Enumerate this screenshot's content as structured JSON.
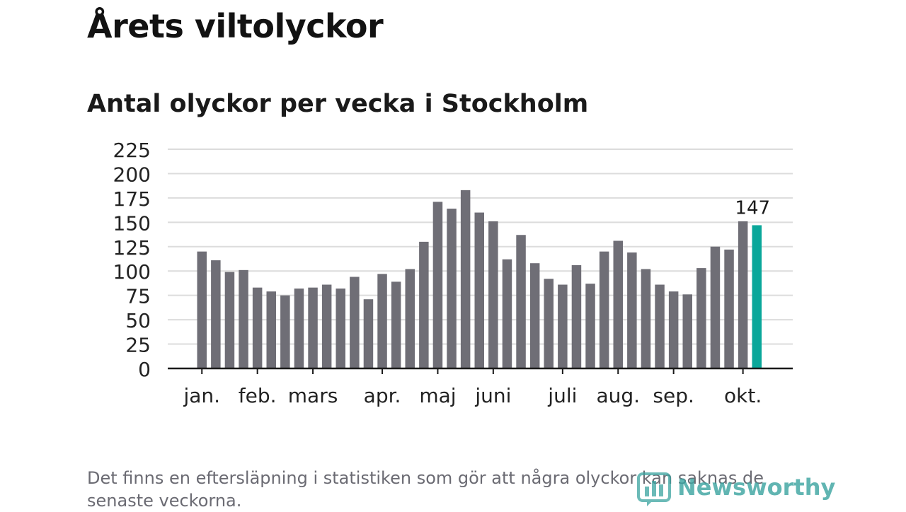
{
  "header": {
    "title": "Årets viltolyckor",
    "subtitle": "Antal olyckor per vecka i Stockholm"
  },
  "footer": {
    "note": "Det finns en eftersläpning i statistiken som gör att några olyckor kan saknas de senaste veckorna.",
    "logo_text": "Newsworthy"
  },
  "colors": {
    "bar": "#6f6e76",
    "highlight": "#0aa79a",
    "grid": "#dcdcdc",
    "axis": "#1a1a1a"
  },
  "chart_data": {
    "type": "bar",
    "title": "Årets viltolyckor",
    "subtitle": "Antal olyckor per vecka i Stockholm",
    "xlabel": "",
    "ylabel": "",
    "ylim": [
      0,
      225
    ],
    "yticks": [
      0,
      25,
      50,
      75,
      100,
      125,
      150,
      175,
      200,
      225
    ],
    "grid": true,
    "values": [
      120,
      111,
      99,
      101,
      83,
      79,
      75,
      82,
      83,
      86,
      82,
      94,
      71,
      97,
      89,
      102,
      130,
      171,
      164,
      183,
      160,
      151,
      112,
      137,
      108,
      92,
      86,
      106,
      87,
      120,
      131,
      119,
      102,
      86,
      79,
      76,
      103,
      125,
      122,
      151,
      147
    ],
    "highlight_index": 40,
    "highlight_label": "147",
    "month_labels": [
      {
        "label": "jan.",
        "bar": 0
      },
      {
        "label": "feb.",
        "bar": 4
      },
      {
        "label": "mars",
        "bar": 8
      },
      {
        "label": "apr.",
        "bar": 13
      },
      {
        "label": "maj",
        "bar": 17
      },
      {
        "label": "juni",
        "bar": 21
      },
      {
        "label": "juli",
        "bar": 26
      },
      {
        "label": "aug.",
        "bar": 30
      },
      {
        "label": "sep.",
        "bar": 34
      },
      {
        "label": "okt.",
        "bar": 39
      }
    ]
  }
}
